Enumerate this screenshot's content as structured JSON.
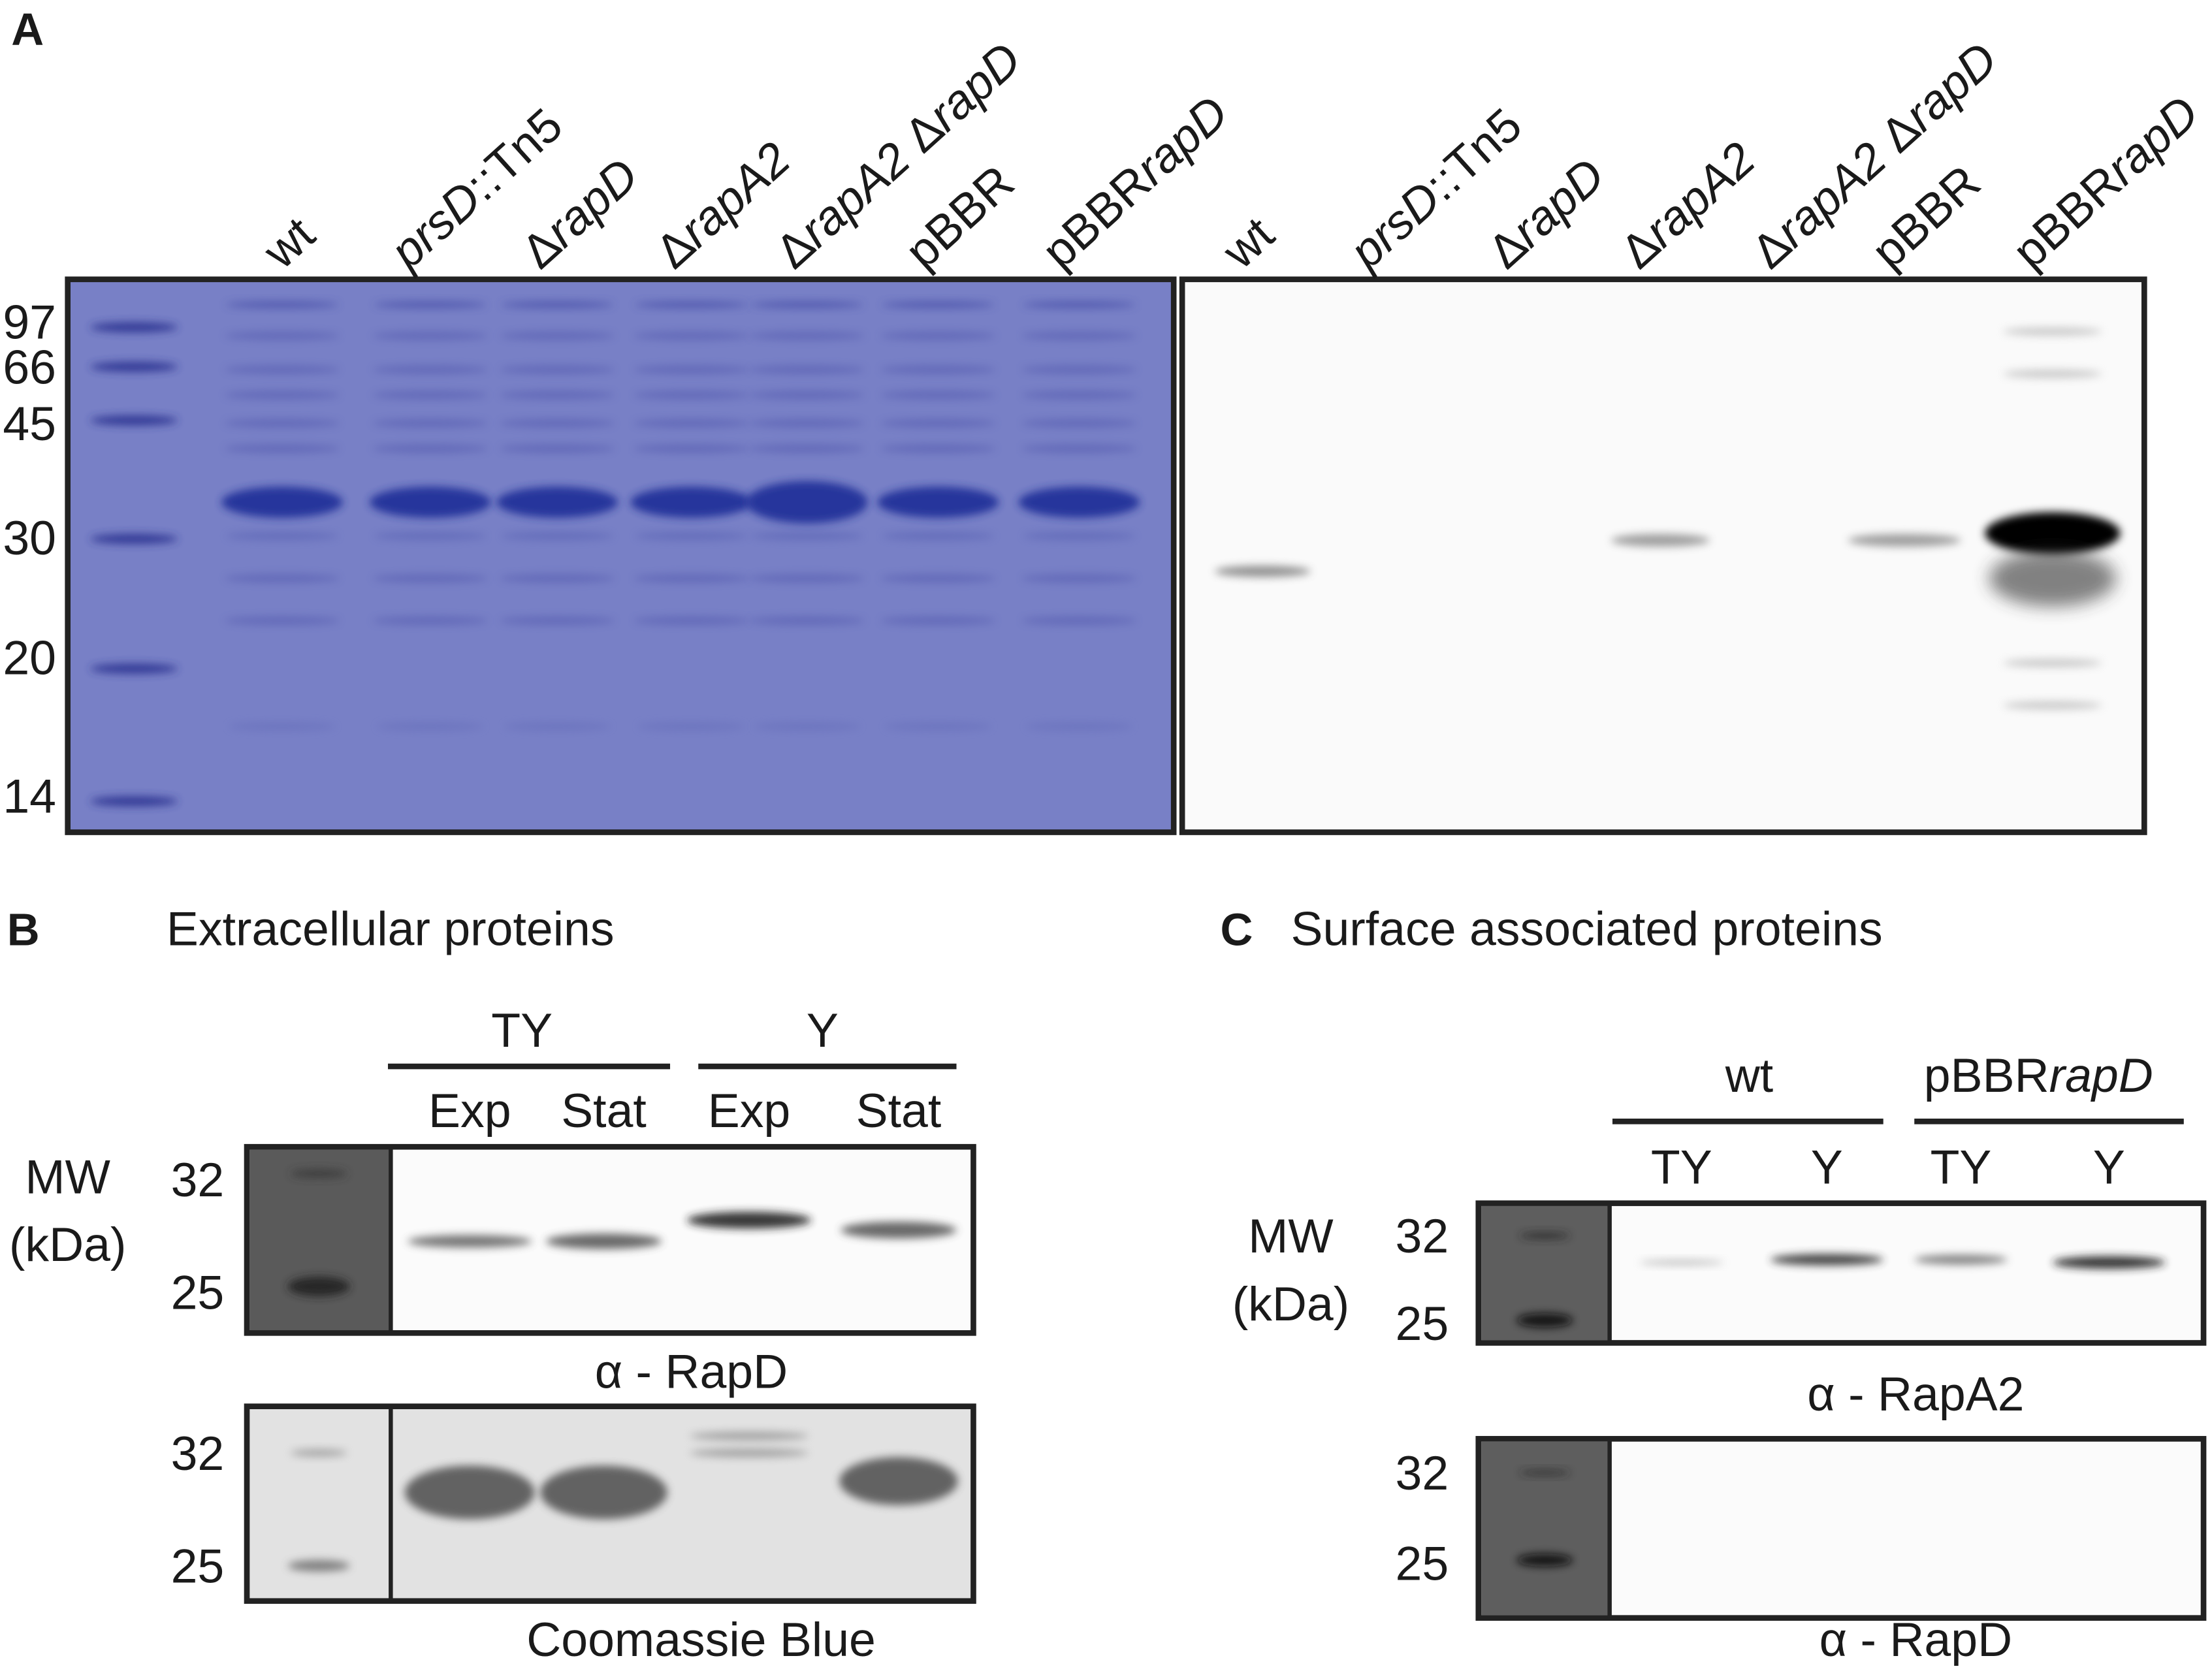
{
  "panel_a": {
    "label": "A",
    "gels": [
      {
        "lanes": [
          [
            {
              "text": "wt"
            }
          ],
          [
            {
              "text": "prsD",
              "italic": true
            },
            {
              "text": "::Tn5"
            }
          ],
          [
            {
              "text": "Δ"
            },
            {
              "text": "rapD",
              "italic": true
            }
          ],
          [
            {
              "text": "Δ"
            },
            {
              "text": "rapA2",
              "italic": true
            }
          ],
          [
            {
              "text": "Δ"
            },
            {
              "text": "rapA2",
              "italic": true
            },
            {
              "text": " Δ"
            },
            {
              "text": "rapD",
              "italic": true
            }
          ],
          [
            {
              "text": "pBBR"
            }
          ],
          [
            {
              "text": "pBBR"
            },
            {
              "text": "rapD",
              "italic": true
            }
          ]
        ]
      },
      {
        "lanes": [
          [
            {
              "text": "wt"
            }
          ],
          [
            {
              "text": "prsD",
              "italic": true
            },
            {
              "text": "::Tn5"
            }
          ],
          [
            {
              "text": "Δ"
            },
            {
              "text": "rapD",
              "italic": true
            }
          ],
          [
            {
              "text": "Δ"
            },
            {
              "text": "rapA2",
              "italic": true
            }
          ],
          [
            {
              "text": "Δ"
            },
            {
              "text": "rapA2",
              "italic": true
            },
            {
              "text": " Δ"
            },
            {
              "text": "rapD",
              "italic": true
            }
          ],
          [
            {
              "text": "pBBR"
            }
          ],
          [
            {
              "text": "pBBR"
            },
            {
              "text": "rapD",
              "italic": true
            }
          ]
        ]
      }
    ],
    "markers": [
      97,
      66,
      45,
      30,
      20,
      14
    ]
  },
  "panel_b": {
    "label": "B",
    "title": "Extracellular proteins",
    "groups": [
      "TY",
      "Y"
    ],
    "conditions": [
      "Exp",
      "Stat",
      "Exp",
      "Stat"
    ],
    "mw_label": [
      "MW",
      "(kDa)"
    ],
    "blots": [
      {
        "markers": [
          32,
          25
        ],
        "caption": "α - RapD"
      },
      {
        "markers": [
          32,
          25
        ],
        "caption": "Coomassie Blue"
      }
    ]
  },
  "panel_c": {
    "label": "C",
    "title": "Surface associated proteins",
    "groups": [
      [
        {
          "text": "wt"
        }
      ],
      [
        {
          "text": "pBBR"
        },
        {
          "text": "rapD",
          "italic": true
        }
      ]
    ],
    "conditions": [
      "TY",
      "Y",
      "TY",
      "Y"
    ],
    "mw_label": [
      "MW",
      "(kDa)"
    ],
    "blots": [
      {
        "markers": [
          32,
          25
        ],
        "caption": "α - RapA2"
      },
      {
        "markers": [
          32,
          25
        ],
        "caption": "α - RapD"
      }
    ]
  }
}
